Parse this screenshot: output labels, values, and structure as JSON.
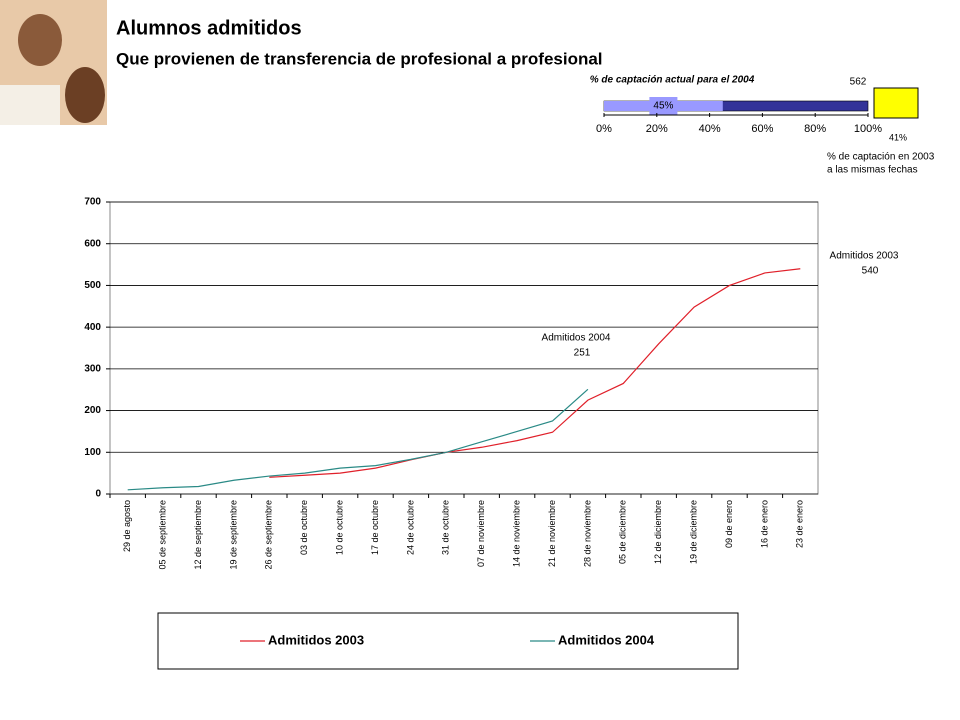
{
  "slide": {
    "title": "Alumnos admitidos",
    "subtitle": "Que provienen de transferencia de profesional a profesional"
  },
  "chart_data": [
    {
      "type": "line",
      "categories": [
        "29 de agosto",
        "05 de septiembre",
        "12 de septiembre",
        "19 de septiembre",
        "26 de septiembre",
        "03 de octubre",
        "10 de octubre",
        "17 de octubre",
        "24 de octubre",
        "31 de octubre",
        "07 de noviembre",
        "14 de noviembre",
        "21 de noviembre",
        "28 de noviembre",
        "05 de diciembre",
        "12 de diciembre",
        "19 de diciembre",
        "09 de enero",
        "16 de enero",
        "23 de enero"
      ],
      "series": [
        {
          "name": "Admitidos 2003",
          "color": "#e0202a",
          "values": [
            null,
            null,
            null,
            null,
            40,
            45,
            50,
            62,
            82,
            100,
            112,
            128,
            148,
            225,
            265,
            360,
            448,
            500,
            530,
            540
          ]
        },
        {
          "name": "Admitidos 2004",
          "color": "#2a8a86",
          "values": [
            10,
            15,
            18,
            33,
            43,
            50,
            62,
            68,
            83,
            100,
            125,
            150,
            175,
            251,
            null,
            null,
            null,
            null,
            null,
            null
          ]
        }
      ],
      "ylim": [
        0,
        700
      ],
      "yticks": [
        0,
        100,
        200,
        300,
        400,
        500,
        600,
        700
      ],
      "grid": true
    },
    {
      "type": "hbar",
      "title": "% de captación actual para el 2004",
      "values": [
        45
      ],
      "value_labels": [
        "45%"
      ],
      "color": "#9999ff",
      "track_color": "#333399",
      "xlim": [
        0,
        100
      ],
      "xticks": [
        {
          "value": 0,
          "label": "0%"
        },
        {
          "value": 20,
          "label": "20%"
        },
        {
          "value": 40,
          "label": "40%"
        },
        {
          "value": 60,
          "label": "60%"
        },
        {
          "value": 80,
          "label": "80%"
        },
        {
          "value": 100,
          "label": "100%"
        }
      ],
      "total": 562,
      "comparison": {
        "value": 41,
        "value_label": "41%",
        "color": "#ffff00",
        "note": [
          "% de captación en 2003",
          "a las mismas fechas"
        ]
      }
    }
  ]
}
